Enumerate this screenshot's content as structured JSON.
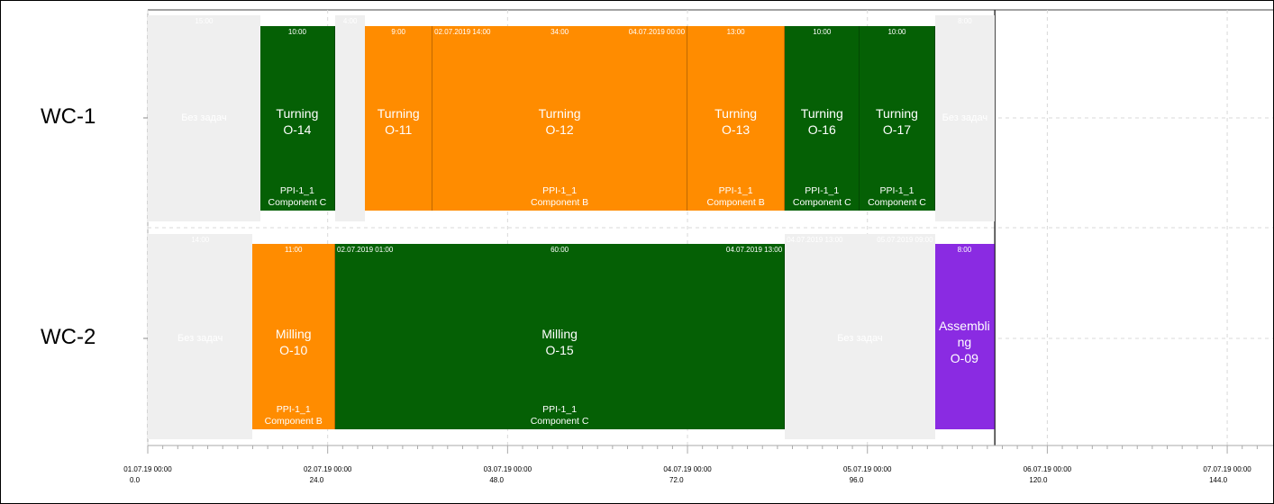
{
  "rows": [
    {
      "label": "WC-1"
    },
    {
      "label": "WC-2"
    }
  ],
  "colors": {
    "green": "#056005",
    "orange": "#ff8c00",
    "purple": "#8a2be2",
    "idle": "#efefef",
    "grid": "#d9d9d9",
    "now_line": "#333333"
  },
  "chart_data": {
    "type": "gantt",
    "x_unit": "hours",
    "xlim": [
      0,
      150
    ],
    "now": 113,
    "ticks": [
      {
        "date": "01.07.19 00:00",
        "hours": "0.0",
        "value": 0
      },
      {
        "date": "02.07.19 00:00",
        "hours": "24.0",
        "value": 24
      },
      {
        "date": "03.07.19 00:00",
        "hours": "48.0",
        "value": 48
      },
      {
        "date": "04.07.19 00:00",
        "hours": "72.0",
        "value": 72
      },
      {
        "date": "05.07.19 00:00",
        "hours": "96.0",
        "value": 96
      },
      {
        "date": "06.07.19 00:00",
        "hours": "120.0",
        "value": 120
      },
      {
        "date": "07.07.19 00:00",
        "hours": "144.0",
        "value": 144
      }
    ],
    "tasks": [
      {
        "row": 0,
        "kind": "idle",
        "start": 0,
        "end": 15,
        "duration": "15:00",
        "name": "Без задач"
      },
      {
        "row": 0,
        "kind": "green",
        "start": 15,
        "end": 25,
        "duration": "10:00",
        "name": "Turning\nO-14",
        "order": "PPI-1_1\nComponent C"
      },
      {
        "row": 0,
        "kind": "idle",
        "start": 25,
        "end": 29,
        "duration": "4:00"
      },
      {
        "row": 0,
        "kind": "orange",
        "start": 29,
        "end": 38,
        "duration": "9:00",
        "name": "Turning\nO-11"
      },
      {
        "row": 0,
        "kind": "orange",
        "start": 38,
        "end": 72,
        "duration": "34:00",
        "date_start": "02.07.2019 14:00",
        "date_end": "04.07.2019 00:00",
        "name": "Turning\nO-12",
        "order": "PPI-1_1\nComponent B"
      },
      {
        "row": 0,
        "kind": "orange",
        "start": 72,
        "end": 85,
        "duration": "13:00",
        "name": "Turning\nO-13",
        "order": "PPI-1_1\nComponent B"
      },
      {
        "row": 0,
        "kind": "green",
        "start": 85,
        "end": 95,
        "duration": "10:00",
        "name": "Turning\nO-16",
        "order": "PPI-1_1\nComponent C"
      },
      {
        "row": 0,
        "kind": "green",
        "start": 95,
        "end": 105,
        "duration": "10:00",
        "name": "Turning\nO-17",
        "order": "PPI-1_1\nComponent C"
      },
      {
        "row": 0,
        "kind": "idle",
        "start": 105,
        "end": 113,
        "duration": "8:00",
        "name": "Без задач"
      },
      {
        "row": 1,
        "kind": "idle",
        "start": 0,
        "end": 14,
        "duration": "14:00",
        "name": "Без задач"
      },
      {
        "row": 1,
        "kind": "orange",
        "start": 14,
        "end": 25,
        "duration": "11:00",
        "name": "Milling\nO-10",
        "order": "PPI-1_1\nComponent B"
      },
      {
        "row": 1,
        "kind": "green",
        "start": 25,
        "end": 85,
        "duration": "60:00",
        "date_start": "02.07.2019 01:00",
        "date_end": "04.07.2019 13:00",
        "name": "Milling\nO-15",
        "order": "PPI-1_1\nComponent C"
      },
      {
        "row": 1,
        "kind": "idle",
        "start": 85,
        "end": 105,
        "duration": "",
        "date_start": "04.07.2019 13:00",
        "date_end": "05.07.2019 09:00",
        "name": "Без задач"
      },
      {
        "row": 1,
        "kind": "purple",
        "start": 105,
        "end": 113,
        "duration": "8:00",
        "name": "Assembli\nng\nO-09"
      }
    ]
  }
}
